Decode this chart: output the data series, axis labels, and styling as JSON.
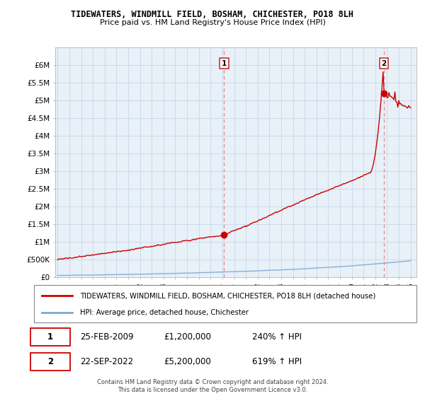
{
  "title": "TIDEWATERS, WINDMILL FIELD, BOSHAM, CHICHESTER, PO18 8LH",
  "subtitle": "Price paid vs. HM Land Registry's House Price Index (HPI)",
  "ylim": [
    0,
    6500000
  ],
  "yticks": [
    0,
    500000,
    1000000,
    1500000,
    2000000,
    2500000,
    3000000,
    3500000,
    4000000,
    4500000,
    5000000,
    5500000,
    6000000
  ],
  "ytick_labels": [
    "£0",
    "£500K",
    "£1M",
    "£1.5M",
    "£2M",
    "£2.5M",
    "£3M",
    "£3.5M",
    "£4M",
    "£4.5M",
    "£5M",
    "£5.5M",
    "£6M"
  ],
  "hpi_line_color": "#7aaad0",
  "price_line_color": "#cc0000",
  "vline_color": "#e08080",
  "annotation1_year": 2009.15,
  "annotation1_value": 1200000,
  "annotation2_year": 2022.72,
  "annotation2_value": 5200000,
  "legend_label1": "TIDEWATERS, WINDMILL FIELD, BOSHAM, CHICHESTER, PO18 8LH (detached house)",
  "legend_label2": "HPI: Average price, detached house, Chichester",
  "ann1_date": "25-FEB-2009",
  "ann1_price": "£1,200,000",
  "ann1_hpi": "240% ↑ HPI",
  "ann2_date": "22-SEP-2022",
  "ann2_price": "£5,200,000",
  "ann2_hpi": "619% ↑ HPI",
  "footer": "Contains HM Land Registry data © Crown copyright and database right 2024.\nThis data is licensed under the Open Government Licence v3.0.",
  "chart_bg": "#e8f0f8",
  "grid_color": "#c8d8e8"
}
